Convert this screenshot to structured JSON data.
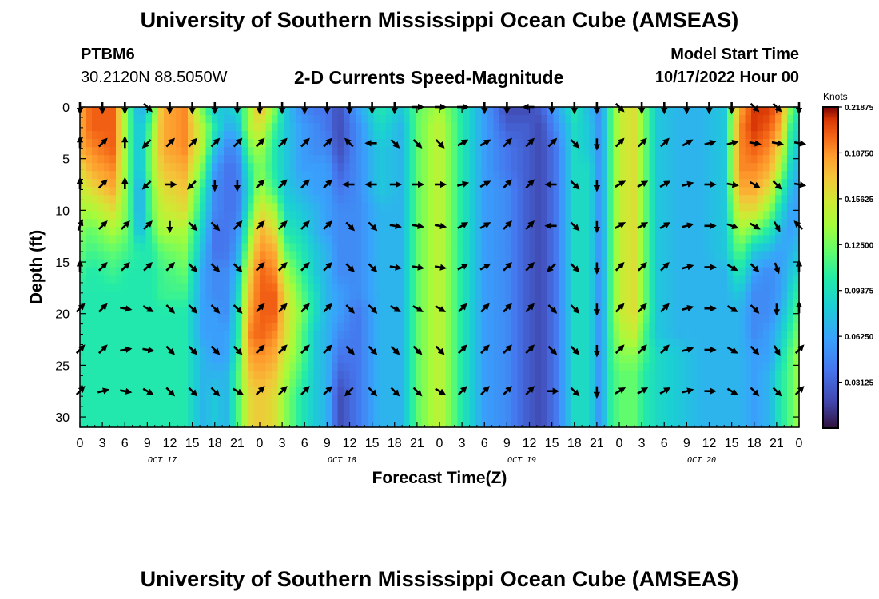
{
  "header": {
    "title": "University of Southern Mississippi Ocean Cube (AMSEAS)",
    "station": "PTBM6",
    "coords": "30.2120N  88.5050W",
    "subtitle": "2-D Currents Speed-Magnitude",
    "model_start_label": "Model Start Time",
    "model_start_value": "10/17/2022 Hour 00"
  },
  "footer": {
    "title": "University of Southern Mississippi Ocean Cube (AMSEAS)"
  },
  "chart_data": {
    "type": "heatmap",
    "title": "2-D Currents Speed-Magnitude",
    "xlabel": "Forecast Time(Z)",
    "ylabel": "Depth (ft)",
    "x_range_hours": [
      0,
      96
    ],
    "y_range_ft": [
      0,
      31
    ],
    "x_tick_labels": [
      "0",
      "3",
      "6",
      "9",
      "12",
      "15",
      "18",
      "21",
      "0",
      "3",
      "6",
      "9",
      "12",
      "15",
      "18",
      "21",
      "0",
      "3",
      "6",
      "9",
      "12",
      "15",
      "18",
      "21",
      "0",
      "3",
      "6",
      "9",
      "12",
      "15",
      "18",
      "21",
      "0"
    ],
    "y_ticks": [
      0,
      5,
      10,
      15,
      20,
      25,
      30
    ],
    "day_labels": [
      {
        "label": "OCT 17",
        "hour": 11
      },
      {
        "label": "OCT 18",
        "hour": 35
      },
      {
        "label": "OCT 19",
        "hour": 59
      },
      {
        "label": "OCT 20",
        "hour": 83
      }
    ],
    "colorbar": {
      "unit": "Knots",
      "range": [
        0.0,
        0.21875
      ],
      "ticks": [
        "0.21875",
        "0.18750",
        "0.15625",
        "0.12500",
        "0.09375",
        "0.06250",
        "0.03125"
      ],
      "tick_values": [
        0.21875,
        0.1875,
        0.15625,
        0.125,
        0.09375,
        0.0625,
        0.03125
      ]
    },
    "speed_columns_knots": [
      [
        0.0,
        0.18,
        0.18,
        0.18,
        0.16,
        0.15,
        0.14,
        0.13,
        0.12,
        0.11,
        0.1,
        0.1,
        0.1,
        0.1,
        0.1,
        0.1
      ],
      [
        1.5,
        0.2,
        0.2,
        0.19,
        0.18,
        0.16,
        0.14,
        0.12,
        0.11,
        0.1,
        0.1,
        0.1,
        0.1,
        0.1,
        0.1,
        0.1
      ],
      [
        4.5,
        0.2,
        0.2,
        0.2,
        0.19,
        0.18,
        0.16,
        0.14,
        0.12,
        0.11,
        0.1,
        0.1,
        0.1,
        0.1,
        0.1,
        0.1
      ],
      [
        6.5,
        0.12,
        0.12,
        0.12,
        0.12,
        0.12,
        0.12,
        0.12,
        0.11,
        0.1,
        0.1,
        0.1,
        0.1,
        0.1,
        0.1,
        0.1
      ],
      [
        8.0,
        0.06,
        0.07,
        0.07,
        0.07,
        0.06,
        0.06,
        0.07,
        0.1,
        0.1,
        0.1,
        0.1,
        0.1,
        0.1,
        0.1,
        0.1
      ],
      [
        9.5,
        0.1,
        0.12,
        0.13,
        0.13,
        0.12,
        0.12,
        0.11,
        0.1,
        0.1,
        0.1,
        0.1,
        0.1,
        0.1,
        0.1,
        0.1
      ],
      [
        11.0,
        0.18,
        0.18,
        0.18,
        0.17,
        0.16,
        0.15,
        0.14,
        0.12,
        0.11,
        0.11,
        0.1,
        0.1,
        0.1,
        0.1,
        0.1
      ],
      [
        14.0,
        0.19,
        0.19,
        0.19,
        0.18,
        0.17,
        0.16,
        0.14,
        0.13,
        0.12,
        0.11,
        0.1,
        0.1,
        0.1,
        0.1,
        0.1
      ],
      [
        16.5,
        0.12,
        0.14,
        0.14,
        0.12,
        0.1,
        0.09,
        0.08,
        0.07,
        0.06,
        0.06,
        0.06,
        0.06,
        0.07,
        0.07,
        0.07
      ],
      [
        18.0,
        0.08,
        0.1,
        0.08,
        0.06,
        0.05,
        0.05,
        0.04,
        0.04,
        0.05,
        0.05,
        0.06,
        0.06,
        0.06,
        0.07,
        0.08
      ],
      [
        19.5,
        0.08,
        0.07,
        0.05,
        0.04,
        0.04,
        0.04,
        0.04,
        0.04,
        0.05,
        0.05,
        0.05,
        0.06,
        0.06,
        0.07,
        0.07
      ],
      [
        21.0,
        0.09,
        0.07,
        0.05,
        0.04,
        0.04,
        0.04,
        0.05,
        0.06,
        0.07,
        0.08,
        0.09,
        0.09,
        0.1,
        0.11,
        0.11
      ],
      [
        22.5,
        0.13,
        0.14,
        0.12,
        0.1,
        0.09,
        0.1,
        0.12,
        0.14,
        0.16,
        0.17,
        0.18,
        0.19,
        0.18,
        0.17,
        0.16
      ],
      [
        24.0,
        0.18,
        0.16,
        0.14,
        0.13,
        0.14,
        0.16,
        0.18,
        0.19,
        0.2,
        0.2,
        0.2,
        0.2,
        0.19,
        0.18,
        0.17
      ],
      [
        26.0,
        0.13,
        0.11,
        0.1,
        0.1,
        0.11,
        0.14,
        0.16,
        0.18,
        0.19,
        0.2,
        0.2,
        0.19,
        0.18,
        0.17,
        0.16
      ],
      [
        27.5,
        0.08,
        0.08,
        0.08,
        0.08,
        0.08,
        0.09,
        0.1,
        0.12,
        0.14,
        0.16,
        0.16,
        0.16,
        0.15,
        0.14,
        0.13
      ],
      [
        29.5,
        0.05,
        0.06,
        0.06,
        0.06,
        0.07,
        0.08,
        0.09,
        0.1,
        0.11,
        0.12,
        0.13,
        0.12,
        0.12,
        0.11,
        0.1
      ],
      [
        31.5,
        0.04,
        0.05,
        0.05,
        0.06,
        0.06,
        0.07,
        0.07,
        0.08,
        0.08,
        0.09,
        0.09,
        0.08,
        0.08,
        0.08,
        0.08
      ],
      [
        33.0,
        0.04,
        0.04,
        0.05,
        0.06,
        0.06,
        0.06,
        0.06,
        0.07,
        0.07,
        0.07,
        0.07,
        0.07,
        0.07,
        0.07,
        0.07
      ],
      [
        34.5,
        0.02,
        0.02,
        0.02,
        0.03,
        0.04,
        0.05,
        0.05,
        0.05,
        0.05,
        0.06,
        0.06,
        0.05,
        0.04,
        0.03,
        0.02
      ],
      [
        37.0,
        0.06,
        0.05,
        0.05,
        0.05,
        0.05,
        0.05,
        0.05,
        0.05,
        0.05,
        0.05,
        0.04,
        0.04,
        0.04,
        0.04,
        0.04
      ],
      [
        40.0,
        0.1,
        0.09,
        0.08,
        0.08,
        0.08,
        0.07,
        0.07,
        0.07,
        0.07,
        0.07,
        0.07,
        0.07,
        0.07,
        0.07,
        0.07
      ],
      [
        43.0,
        0.08,
        0.07,
        0.07,
        0.07,
        0.07,
        0.07,
        0.07,
        0.07,
        0.07,
        0.07,
        0.07,
        0.07,
        0.07,
        0.07,
        0.07
      ],
      [
        45.0,
        0.12,
        0.12,
        0.12,
        0.12,
        0.12,
        0.12,
        0.12,
        0.12,
        0.12,
        0.12,
        0.12,
        0.12,
        0.12,
        0.12,
        0.12
      ],
      [
        48.0,
        0.14,
        0.15,
        0.15,
        0.15,
        0.15,
        0.15,
        0.15,
        0.15,
        0.15,
        0.15,
        0.15,
        0.15,
        0.15,
        0.15,
        0.15
      ],
      [
        51.0,
        0.1,
        0.1,
        0.1,
        0.1,
        0.1,
        0.1,
        0.1,
        0.1,
        0.1,
        0.1,
        0.1,
        0.1,
        0.1,
        0.1,
        0.1
      ],
      [
        54.0,
        0.06,
        0.06,
        0.06,
        0.06,
        0.06,
        0.06,
        0.06,
        0.06,
        0.06,
        0.06,
        0.06,
        0.06,
        0.06,
        0.06,
        0.06
      ],
      [
        57.0,
        0.02,
        0.03,
        0.04,
        0.04,
        0.05,
        0.05,
        0.05,
        0.05,
        0.05,
        0.05,
        0.05,
        0.05,
        0.05,
        0.05,
        0.05
      ],
      [
        59.5,
        0.02,
        0.03,
        0.03,
        0.03,
        0.03,
        0.03,
        0.03,
        0.03,
        0.03,
        0.03,
        0.03,
        0.03,
        0.03,
        0.03,
        0.03
      ],
      [
        61.5,
        0.03,
        0.02,
        0.02,
        0.02,
        0.02,
        0.02,
        0.02,
        0.02,
        0.02,
        0.02,
        0.02,
        0.02,
        0.02,
        0.02,
        0.02
      ],
      [
        63.5,
        0.06,
        0.05,
        0.04,
        0.04,
        0.04,
        0.04,
        0.04,
        0.04,
        0.04,
        0.04,
        0.04,
        0.04,
        0.04,
        0.04,
        0.04
      ],
      [
        66.0,
        0.1,
        0.09,
        0.09,
        0.09,
        0.09,
        0.09,
        0.09,
        0.09,
        0.09,
        0.09,
        0.09,
        0.09,
        0.09,
        0.09,
        0.09
      ],
      [
        68.0,
        0.07,
        0.08,
        0.08,
        0.09,
        0.09,
        0.09,
        0.09,
        0.09,
        0.09,
        0.09,
        0.09,
        0.09,
        0.09,
        0.09,
        0.09
      ],
      [
        69.5,
        0.05,
        0.05,
        0.05,
        0.05,
        0.05,
        0.05,
        0.05,
        0.05,
        0.05,
        0.05,
        0.05,
        0.05,
        0.05,
        0.05,
        0.05
      ],
      [
        70.5,
        0.1,
        0.1,
        0.1,
        0.1,
        0.1,
        0.1,
        0.1,
        0.1,
        0.1,
        0.1,
        0.1,
        0.1,
        0.1,
        0.1,
        0.1
      ],
      [
        72.0,
        0.15,
        0.15,
        0.15,
        0.15,
        0.15,
        0.15,
        0.15,
        0.15,
        0.15,
        0.15,
        0.15,
        0.14,
        0.13,
        0.12,
        0.12
      ],
      [
        74.0,
        0.16,
        0.16,
        0.16,
        0.16,
        0.16,
        0.16,
        0.16,
        0.16,
        0.16,
        0.16,
        0.16,
        0.15,
        0.13,
        0.12,
        0.12
      ],
      [
        75.5,
        0.12,
        0.12,
        0.12,
        0.12,
        0.12,
        0.12,
        0.12,
        0.12,
        0.12,
        0.12,
        0.12,
        0.11,
        0.11,
        0.1,
        0.1
      ],
      [
        77.0,
        0.08,
        0.08,
        0.08,
        0.08,
        0.08,
        0.08,
        0.08,
        0.08,
        0.08,
        0.08,
        0.08,
        0.08,
        0.09,
        0.09,
        0.09
      ],
      [
        80.0,
        0.07,
        0.07,
        0.07,
        0.07,
        0.07,
        0.07,
        0.07,
        0.07,
        0.07,
        0.07,
        0.07,
        0.07,
        0.08,
        0.08,
        0.08
      ],
      [
        83.0,
        0.07,
        0.07,
        0.07,
        0.07,
        0.07,
        0.07,
        0.07,
        0.07,
        0.07,
        0.07,
        0.07,
        0.07,
        0.07,
        0.07,
        0.07
      ],
      [
        86.0,
        0.08,
        0.08,
        0.08,
        0.08,
        0.08,
        0.08,
        0.08,
        0.08,
        0.07,
        0.07,
        0.07,
        0.07,
        0.07,
        0.07,
        0.07
      ],
      [
        88.0,
        0.18,
        0.19,
        0.19,
        0.19,
        0.18,
        0.16,
        0.14,
        0.12,
        0.1,
        0.08,
        0.07,
        0.07,
        0.07,
        0.07,
        0.07
      ],
      [
        90.0,
        0.21,
        0.21,
        0.2,
        0.19,
        0.18,
        0.16,
        0.12,
        0.08,
        0.06,
        0.05,
        0.05,
        0.05,
        0.06,
        0.06,
        0.06
      ],
      [
        92.0,
        0.21,
        0.2,
        0.19,
        0.18,
        0.16,
        0.13,
        0.1,
        0.07,
        0.05,
        0.05,
        0.05,
        0.06,
        0.06,
        0.07,
        0.07
      ],
      [
        93.5,
        0.19,
        0.18,
        0.16,
        0.14,
        0.11,
        0.09,
        0.07,
        0.06,
        0.06,
        0.06,
        0.07,
        0.08,
        0.09,
        0.1,
        0.1
      ],
      [
        95.0,
        0.12,
        0.1,
        0.09,
        0.08,
        0.07,
        0.06,
        0.06,
        0.07,
        0.08,
        0.09,
        0.1,
        0.11,
        0.12,
        0.12,
        0.12
      ],
      [
        96.0,
        0.1,
        0.09,
        0.08,
        0.07,
        0.06,
        0.06,
        0.07,
        0.08,
        0.09,
        0.11,
        0.12,
        0.13,
        0.14,
        0.14,
        0.14
      ]
    ],
    "speed_depths_ft": [
      0,
      2,
      4,
      6,
      8,
      10,
      12,
      14,
      16,
      18,
      20,
      22,
      24,
      26,
      28
    ],
    "vector_depths_ft": [
      0,
      3.5,
      7.5,
      11.5,
      15.5,
      19.5,
      23.5,
      27.5
    ],
    "vector_hours": [
      0,
      3,
      6,
      9,
      12,
      15,
      18,
      21,
      24,
      27,
      30,
      33,
      36,
      39,
      42,
      45,
      48,
      51,
      54,
      57,
      60,
      63,
      66,
      69,
      72,
      75,
      78,
      81,
      84,
      87,
      90,
      93,
      96
    ],
    "vector_directions_deg": [
      [
        180,
        180,
        180,
        135,
        180,
        180,
        180,
        180,
        180,
        180,
        180,
        180,
        180,
        180,
        180,
        90,
        90,
        90,
        180,
        180,
        270,
        180,
        180,
        180,
        135,
        180,
        180,
        180,
        180,
        180,
        135,
        135,
        180
      ],
      [
        0,
        45,
        0,
        225,
        45,
        45,
        45,
        45,
        45,
        45,
        45,
        45,
        315,
        270,
        135,
        135,
        135,
        60,
        60,
        45,
        45,
        45,
        135,
        180,
        45,
        45,
        45,
        60,
        75,
        75,
        100,
        100,
        100
      ],
      [
        0,
        45,
        0,
        225,
        90,
        225,
        180,
        180,
        45,
        45,
        45,
        45,
        270,
        270,
        90,
        90,
        90,
        75,
        60,
        45,
        45,
        270,
        135,
        180,
        60,
        60,
        60,
        75,
        90,
        100,
        120,
        135,
        100
      ],
      [
        20,
        45,
        45,
        45,
        180,
        135,
        135,
        45,
        45,
        45,
        45,
        45,
        135,
        135,
        100,
        100,
        100,
        60,
        60,
        45,
        45,
        270,
        135,
        180,
        60,
        60,
        60,
        75,
        90,
        110,
        120,
        150,
        315
      ],
      [
        0,
        45,
        45,
        45,
        45,
        135,
        135,
        135,
        45,
        45,
        45,
        45,
        135,
        135,
        100,
        100,
        100,
        60,
        60,
        45,
        45,
        225,
        135,
        180,
        45,
        45,
        45,
        75,
        90,
        120,
        135,
        160,
        0
      ],
      [
        45,
        45,
        100,
        120,
        135,
        135,
        135,
        135,
        45,
        45,
        45,
        45,
        135,
        135,
        120,
        120,
        120,
        45,
        45,
        45,
        45,
        135,
        135,
        180,
        45,
        45,
        45,
        75,
        90,
        120,
        135,
        180,
        0
      ],
      [
        45,
        45,
        80,
        100,
        135,
        135,
        135,
        135,
        45,
        45,
        45,
        45,
        135,
        135,
        135,
        135,
        135,
        45,
        45,
        45,
        45,
        135,
        135,
        180,
        45,
        45,
        45,
        75,
        90,
        120,
        135,
        150,
        45
      ],
      [
        45,
        75,
        100,
        120,
        135,
        135,
        135,
        120,
        45,
        45,
        45,
        45,
        225,
        135,
        135,
        135,
        120,
        45,
        45,
        45,
        45,
        90,
        135,
        180,
        60,
        60,
        60,
        75,
        90,
        120,
        135,
        135,
        45
      ]
    ]
  }
}
